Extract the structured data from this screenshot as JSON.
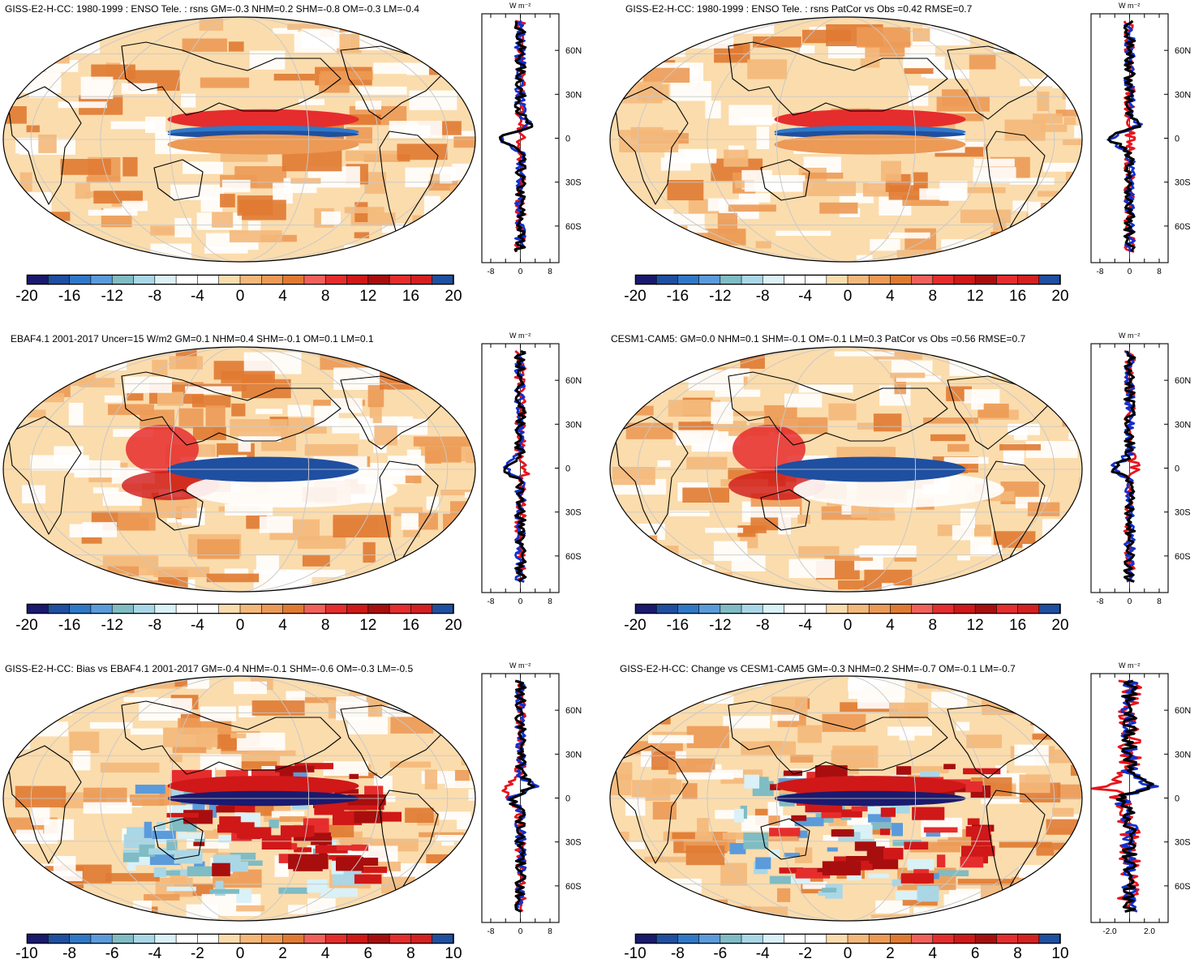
{
  "panels": [
    {
      "title": "GISS-E2-H-CC: 1980-1999 : ENSO Tele. : rsns GM=-0.3 NHM=0.2 SHM=-0.8 OM=-0.3 LM=-0.4",
      "scale": "a",
      "colorbar_labels": [
        "-20",
        "-16",
        "-12",
        "-8",
        "-4",
        "0",
        "4",
        "8",
        "12",
        "16",
        "20"
      ],
      "profile": {
        "unit": "W m⁻²",
        "lat_labels": [
          "60N",
          "30N",
          "0",
          "30S",
          "60S"
        ],
        "x_labels": [
          "-8",
          "0",
          "8"
        ]
      }
    },
    {
      "title": "GISS-E2-H-CC: 1980-1999 : ENSO Tele. : rsns PatCor vs Obs =0.42 RMSE=0.7",
      "scale": "a",
      "colorbar_labels": [
        "-20",
        "-16",
        "-12",
        "-8",
        "-4",
        "0",
        "4",
        "8",
        "12",
        "16",
        "20"
      ],
      "profile": {
        "unit": "W m⁻²",
        "lat_labels": [
          "60N",
          "30N",
          "0",
          "30S",
          "60S"
        ],
        "x_labels": [
          "-8",
          "0",
          "8"
        ]
      }
    },
    {
      "title": "EBAF4.1 2001-2017 Uncer=15 W/m2 GM=0.1 NHM=0.4 SHM=-0.1 OM=0.1 LM=0.1",
      "scale": "b",
      "colorbar_labels": [
        "-20",
        "-16",
        "-12",
        "-8",
        "-4",
        "0",
        "4",
        "8",
        "12",
        "16",
        "20"
      ],
      "profile": {
        "unit": "W m⁻²",
        "lat_labels": [
          "60N",
          "30N",
          "0",
          "30S",
          "60S"
        ],
        "x_labels": [
          "-8",
          "0",
          "8"
        ]
      }
    },
    {
      "title": "CESM1-CAM5: GM=0.0 NHM=0.1 SHM=-0.1 OM=-0.1 LM=0.3 PatCor vs Obs =0.56 RMSE=0.7",
      "scale": "c",
      "colorbar_labels": [
        "-20",
        "-16",
        "-12",
        "-8",
        "-4",
        "0",
        "4",
        "8",
        "12",
        "16",
        "20"
      ],
      "profile": {
        "unit": "W m⁻²",
        "lat_labels": [
          "60N",
          "30N",
          "0",
          "30S",
          "60S"
        ],
        "x_labels": [
          "-8",
          "0",
          "8"
        ]
      }
    },
    {
      "title": "GISS-E2-H-CC: Bias vs EBAF4.1 2001-2017 GM=-0.4 NHM=-0.1 SHM=-0.6 OM=-0.3 LM=-0.5",
      "scale": "d",
      "colorbar_labels": [
        "-10",
        "-8",
        "-6",
        "-4",
        "-2",
        "0",
        "2",
        "4",
        "6",
        "8",
        "10"
      ],
      "profile": {
        "unit": "W m⁻²",
        "lat_labels": [
          "60N",
          "30N",
          "0",
          "30S",
          "60S"
        ],
        "x_labels": [
          "-8",
          "0",
          "8"
        ]
      }
    },
    {
      "title": "GISS-E2-H-CC: Change vs CESM1-CAM5 GM=-0.3 NHM=0.2 SHM=-0.7 OM=-0.1 LM=-0.7",
      "scale": "e",
      "colorbar_labels": [
        "-10",
        "-8",
        "-6",
        "-4",
        "-2",
        "0",
        "2",
        "4",
        "6",
        "8",
        "10"
      ],
      "profile": {
        "unit": "W m⁻²",
        "lat_labels": [
          "60N",
          "30N",
          "0",
          "30S",
          "60S"
        ],
        "x_labels": [
          "-2.0",
          "2.0"
        ]
      }
    }
  ],
  "colors": {
    "palette": [
      "#1a1a6e",
      "#1f4fa0",
      "#2f78c8",
      "#5b9bdb",
      "#7fbcc4",
      "#a9d7e6",
      "#d9f1f7",
      "#ffffff",
      "#ffffff",
      "#fbdcad",
      "#f4b87a",
      "#ec9a55",
      "#e07a32",
      "#f2605a",
      "#e52d2d",
      "#d01818",
      "#a80e0e",
      "#e52d2d",
      "#d42020",
      "#1f4fa0"
    ],
    "map_background": "#fbdcad",
    "series_model": "#e8141c",
    "series_obs": "#1030d0",
    "series_diff": "#000000"
  }
}
